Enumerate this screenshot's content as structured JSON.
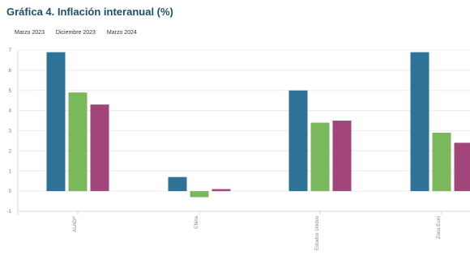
{
  "chart_data": {
    "type": "bar",
    "title": "Gráfica 4. Inflación interanual (%)",
    "categories": [
      "ALADI*",
      "China",
      "Estados Unidos",
      "Zona Euro"
    ],
    "series": [
      {
        "name": "Marzo 2023",
        "values": [
          6.9,
          0.7,
          5.0,
          6.9
        ],
        "color": "#2e7298"
      },
      {
        "name": "Diciembre 2023",
        "values": [
          4.9,
          -0.3,
          3.4,
          2.9
        ],
        "color": "#7ab85c"
      },
      {
        "name": "Marzo 2024",
        "values": [
          4.3,
          0.1,
          3.5,
          2.4
        ],
        "color": "#a1457a"
      }
    ],
    "ylim": [
      -1,
      7
    ],
    "yticks": [
      -1,
      0,
      1,
      2,
      3,
      4,
      5,
      6,
      7
    ],
    "grid": true,
    "legend": "top-left"
  }
}
